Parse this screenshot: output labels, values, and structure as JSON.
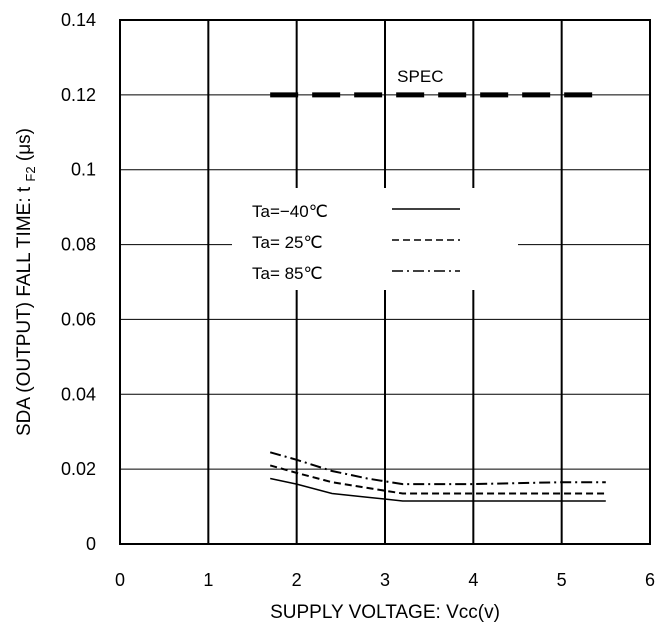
{
  "chart_data": {
    "type": "line",
    "xlabel": "SUPPLY VOLTAGE: Vcc(v)",
    "ylabel_main": "SDA (OUTPUT) FALL TIME: t",
    "ylabel_sub": "F2",
    "ylabel_unit": "(μs)",
    "xlim": [
      0,
      6
    ],
    "ylim": [
      0,
      0.14
    ],
    "x_ticks": [
      "0",
      "1",
      "2",
      "3",
      "4",
      "5",
      "6"
    ],
    "y_ticks": [
      "0",
      "0.02",
      "0.04",
      "0.06",
      "0.08",
      "0.1",
      "0.12",
      "0.14"
    ],
    "grid": true,
    "legend_placement": "center-left",
    "spec": {
      "label": "SPEC",
      "y": 0.12,
      "x_start": 1.7,
      "x_end": 5.35
    },
    "series": [
      {
        "name": "Ta=−40℃",
        "style": "solid",
        "x": [
          1.7,
          2.0,
          2.4,
          2.8,
          3.2,
          4.0,
          5.0,
          5.5
        ],
        "y": [
          0.0175,
          0.016,
          0.0135,
          0.0125,
          0.0115,
          0.0115,
          0.0115,
          0.0115
        ]
      },
      {
        "name": "Ta= 25℃",
        "style": "dash",
        "x": [
          1.7,
          2.0,
          2.4,
          2.8,
          3.2,
          4.0,
          5.0,
          5.5
        ],
        "y": [
          0.021,
          0.019,
          0.0165,
          0.015,
          0.0135,
          0.0135,
          0.0135,
          0.0135
        ]
      },
      {
        "name": "Ta= 85℃",
        "style": "dashdot",
        "x": [
          1.7,
          2.0,
          2.4,
          2.8,
          3.2,
          4.0,
          5.0,
          5.5
        ],
        "y": [
          0.0245,
          0.0225,
          0.0195,
          0.0175,
          0.016,
          0.016,
          0.0165,
          0.0165
        ]
      }
    ]
  }
}
